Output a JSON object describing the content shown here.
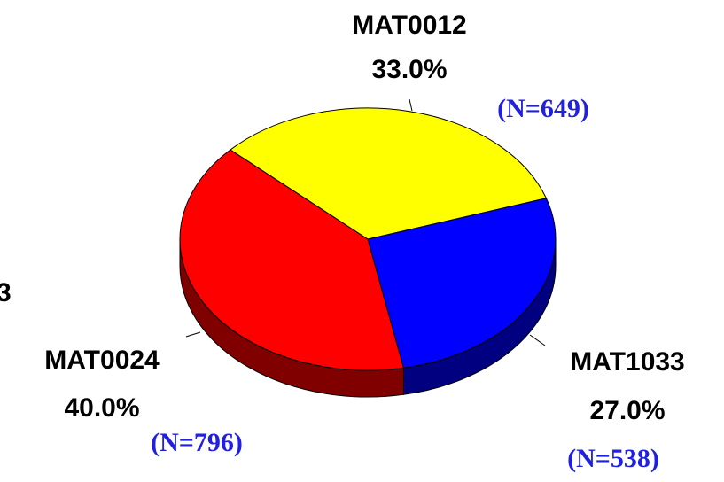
{
  "chart_data": {
    "type": "pie",
    "annotations": [
      "3"
    ],
    "categories": [
      "MAT0012",
      "MAT1033",
      "MAT0024"
    ],
    "values": [
      33.0,
      27.0,
      40.0
    ],
    "value_labels": [
      "33.0%",
      "27.0%",
      "40.0%"
    ],
    "counts": [
      649,
      538,
      796
    ],
    "count_labels": [
      "(N=649)",
      "(N=538)",
      "(N=796)"
    ],
    "colors": [
      "#ffff00",
      "#0000ff",
      "#ff0000"
    ],
    "side_colors": [
      "#808000",
      "#000080",
      "#800000"
    ],
    "count_color": "#2020e0"
  }
}
